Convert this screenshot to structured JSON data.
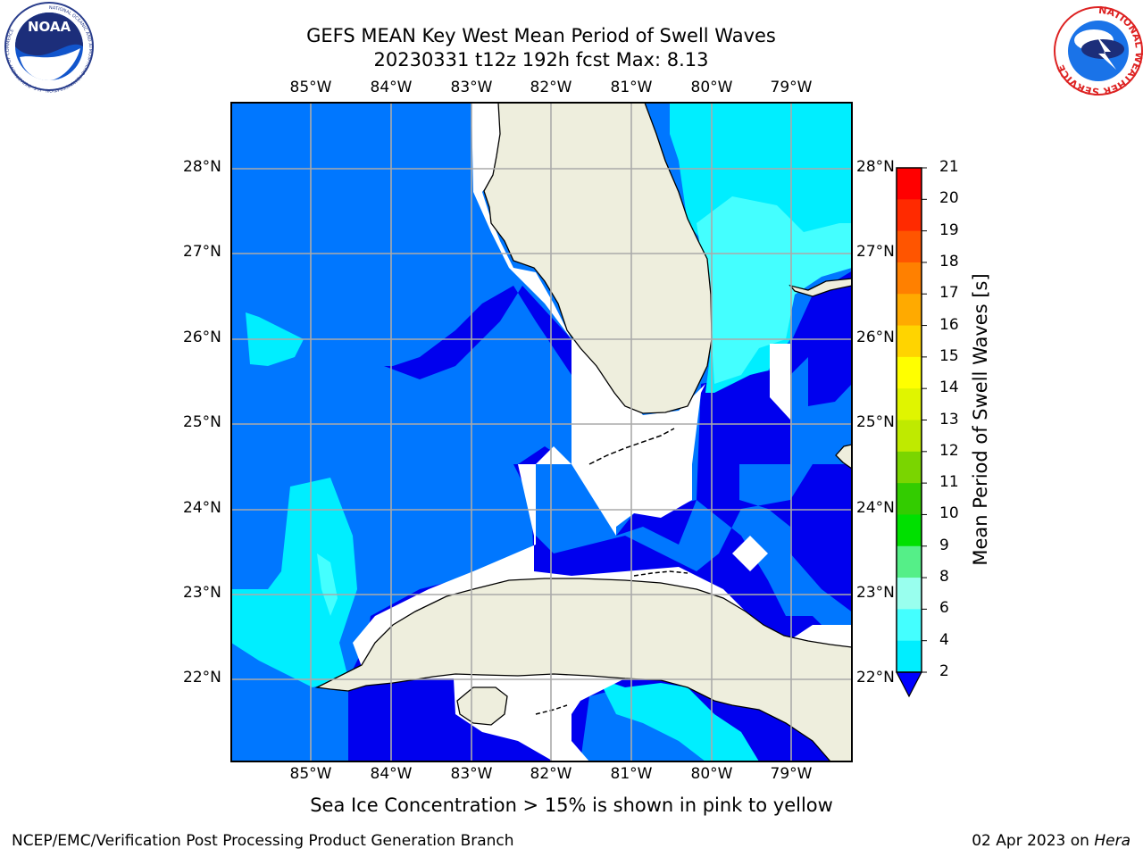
{
  "title_line1": "GEFS MEAN Key West Mean Period of Swell Waves",
  "title_line2": "20230331 t12z 192h fcst   Max: 8.13",
  "lon_labels": [
    "85°W",
    "84°W",
    "83°W",
    "82°W",
    "81°W",
    "80°W",
    "79°W"
  ],
  "lat_labels": [
    "28°N",
    "27°N",
    "26°N",
    "25°N",
    "24°N",
    "23°N",
    "22°N"
  ],
  "colorbar": {
    "label": "Mean Period of Swell Waves [s]",
    "ticks": [
      "21",
      "20",
      "19",
      "18",
      "17",
      "16",
      "15",
      "14",
      "13",
      "12",
      "11",
      "10",
      "9",
      "8",
      "6",
      "4",
      "2"
    ],
    "colors": [
      "#ff0000",
      "#ff2a00",
      "#ff5500",
      "#ff8000",
      "#ffaa00",
      "#ffd400",
      "#ffff00",
      "#e0f500",
      "#bfea00",
      "#7ad500",
      "#33cc00",
      "#00e000",
      "#55ef88",
      "#99ffee",
      "#44ffff",
      "#00eeff",
      "#0077ff",
      "#0000ff"
    ]
  },
  "map_colors": {
    "band_2_4": "#0077ff",
    "band_4_6": "#00eeff",
    "band_6_8": "#44ffff",
    "below_2": "#0000ee",
    "land": "#eeeedd",
    "no_data": "#ffffff"
  },
  "bottom_note": "Sea Ice Concentration > 15% is shown in pink to yellow",
  "footer_left": "NCEP/EMC/Verification Post Processing Product Generation Branch",
  "footer_date": "02 Apr 2023 on",
  "footer_machine": "Hera",
  "logo_left": "NOAA",
  "logo_left_ring": "NATIONAL OCEANIC AND ATMOSPHERIC ADMINISTRATION · U.S. DEPARTMENT OF COMMERCE",
  "logo_right_ring": "NATIONAL WEATHER SERVICE"
}
